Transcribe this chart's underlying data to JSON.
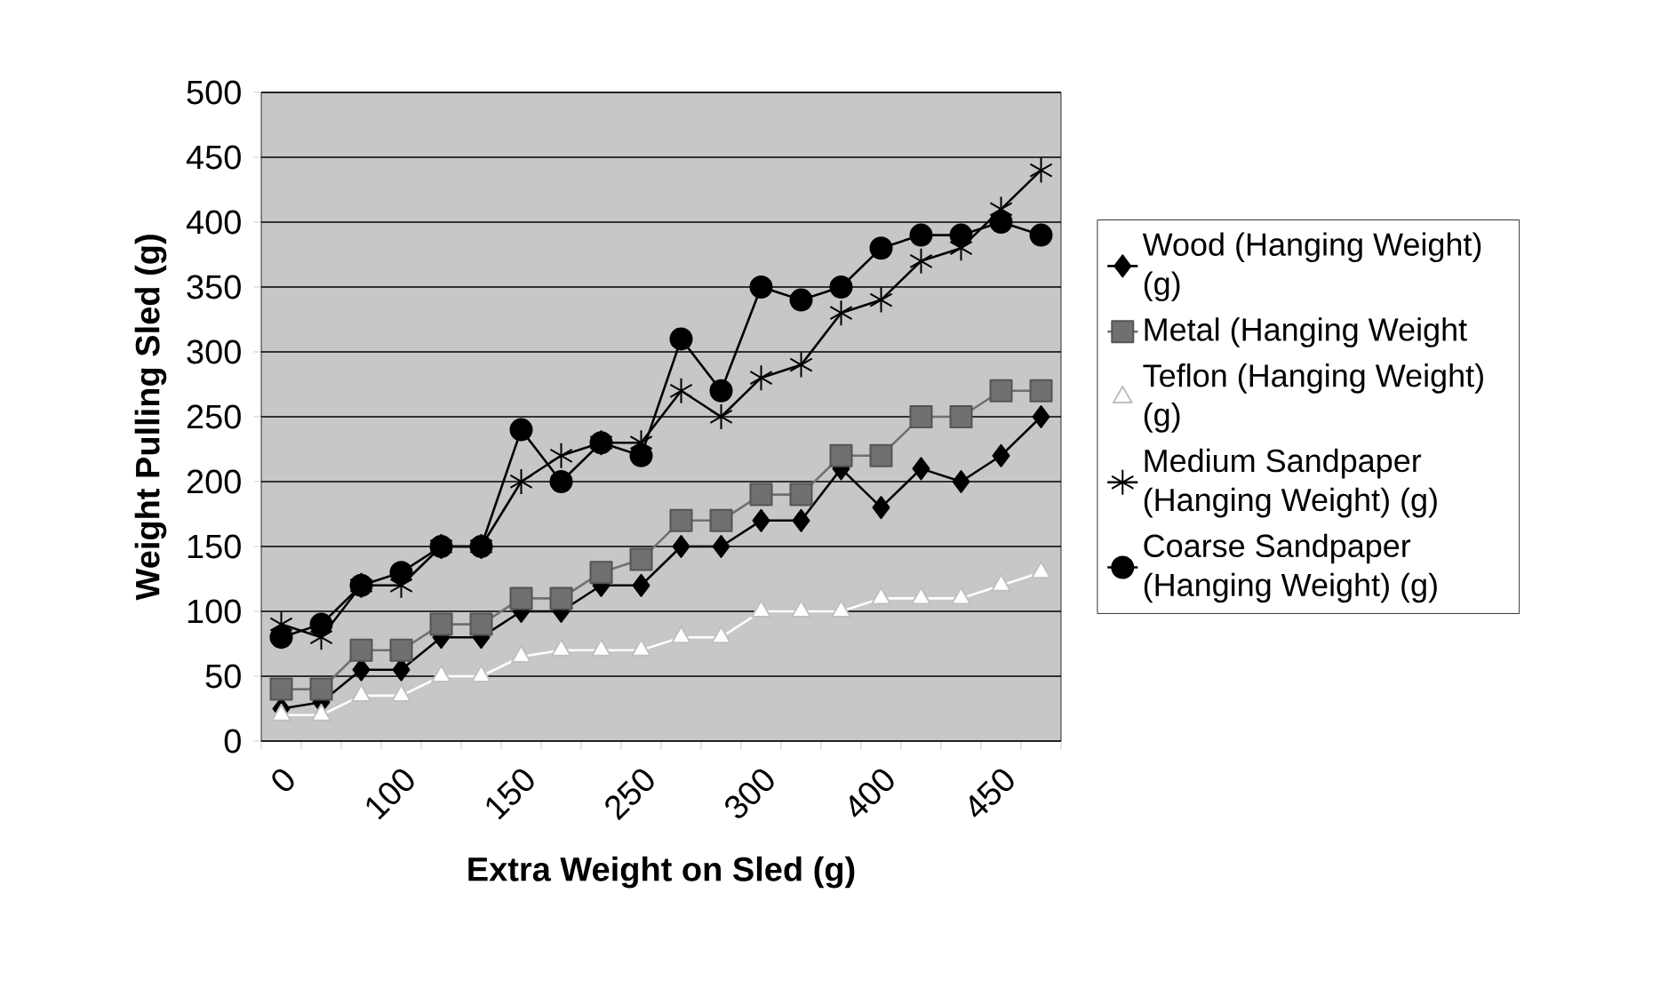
{
  "chart_data": {
    "type": "line",
    "xlabel": "Extra Weight on Sled (g)",
    "ylabel": "Weight Pulling Sled (g)",
    "categories": [
      "0",
      null,
      null,
      "100",
      null,
      null,
      "150",
      null,
      null,
      "250",
      null,
      null,
      "300",
      null,
      null,
      "400",
      null,
      null,
      "450",
      null
    ],
    "ylim": [
      0,
      500
    ],
    "yticks": [
      0,
      50,
      100,
      150,
      200,
      250,
      300,
      350,
      400,
      450,
      500
    ],
    "grid": "y",
    "legend": "right",
    "series": [
      {
        "name": "Wood (Hanging Weight) (g)",
        "color": "#000000",
        "marker": "diamond",
        "values": [
          25,
          30,
          55,
          55,
          80,
          80,
          100,
          100,
          120,
          120,
          150,
          150,
          170,
          170,
          210,
          180,
          210,
          200,
          220,
          250
        ]
      },
      {
        "name": "Metal (Hanging Weight",
        "color": "#707070",
        "marker": "square",
        "values": [
          40,
          40,
          70,
          70,
          90,
          90,
          110,
          110,
          130,
          140,
          170,
          170,
          190,
          190,
          220,
          220,
          250,
          250,
          270,
          270
        ]
      },
      {
        "name": "Teflon (Hanging Weight) (g)",
        "color": "#ffffff",
        "marker": "triangle",
        "values": [
          20,
          20,
          35,
          35,
          50,
          50,
          65,
          70,
          70,
          70,
          80,
          80,
          100,
          100,
          100,
          110,
          110,
          110,
          120,
          130
        ]
      },
      {
        "name": "Medium Sandpaper (Hanging Weight) (g)",
        "color": "#000000",
        "marker": "cross",
        "values": [
          90,
          80,
          120,
          120,
          150,
          150,
          200,
          220,
          230,
          230,
          270,
          250,
          280,
          290,
          330,
          340,
          370,
          380,
          410,
          440
        ]
      },
      {
        "name": "Coarse Sandpaper (Hanging Weight) (g)",
        "color": "#000000",
        "marker": "circle",
        "values": [
          80,
          90,
          120,
          130,
          150,
          150,
          240,
          200,
          230,
          220,
          310,
          270,
          350,
          340,
          350,
          380,
          390,
          390,
          400,
          390
        ]
      }
    ]
  }
}
